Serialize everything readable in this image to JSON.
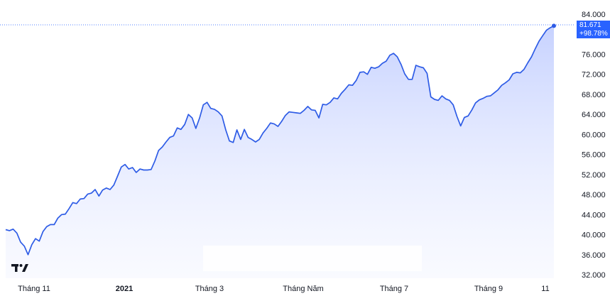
{
  "chart_data": {
    "type": "area",
    "y_ticks": [
      "84.000",
      "80.000",
      "76.000",
      "72.000",
      "68.000",
      "64.000",
      "60.000",
      "56.000",
      "52.000",
      "48.000",
      "44.000",
      "40.000",
      "36.000",
      "32.000"
    ],
    "ylim": [
      32000,
      84000
    ],
    "x_ticks": [
      "Tháng 11",
      "2021",
      "Tháng 3",
      "Tháng Năm",
      "Tháng 7",
      "Tháng 9",
      "11"
    ],
    "bold_tick": "2021",
    "last_value": "81.671",
    "last_change": "+98.78%",
    "series": [
      {
        "values": [
          41000,
          40800,
          41100,
          40300,
          38500,
          37700,
          36000,
          38000,
          39200,
          38700,
          40600,
          41600,
          42000,
          42000,
          43300,
          44000,
          44100,
          45200,
          46400,
          46200,
          47100,
          47200,
          48100,
          48300,
          49000,
          47700,
          48900,
          49300,
          49000,
          49900,
          51700,
          53500,
          54000,
          53100,
          53400,
          52400,
          53100,
          52900,
          52900,
          53000,
          54700,
          56800,
          57500,
          58500,
          59400,
          59700,
          61300,
          61000,
          62000,
          64000,
          63300,
          61200,
          63300,
          65900,
          66400,
          65200,
          65000,
          64500,
          63700,
          60900,
          58700,
          58400,
          60900,
          59000,
          61000,
          59400,
          59000,
          58500,
          59000,
          60300,
          61200,
          62300,
          62100,
          61600,
          62600,
          63800,
          64500,
          64400,
          64300,
          64200,
          64800,
          65600,
          64900,
          64800,
          63300,
          66000,
          65900,
          66400,
          67300,
          67100,
          68200,
          69000,
          69900,
          69800,
          70800,
          72400,
          72500,
          72000,
          73400,
          73200,
          73500,
          74200,
          74600,
          75800,
          76200,
          75500,
          74000,
          72100,
          71000,
          71000,
          73800,
          73500,
          73300,
          72200,
          67500,
          67000,
          66800,
          67700,
          67100,
          66800,
          65900,
          63600,
          61700,
          63400,
          63700,
          64900,
          66300,
          66900,
          67200,
          67600,
          67700,
          68300,
          68900,
          69800,
          70300,
          70900,
          72100,
          72400,
          72300,
          73000,
          74300,
          75500,
          77100,
          78600,
          79700,
          80800,
          81300,
          81671
        ]
      }
    ]
  }
}
